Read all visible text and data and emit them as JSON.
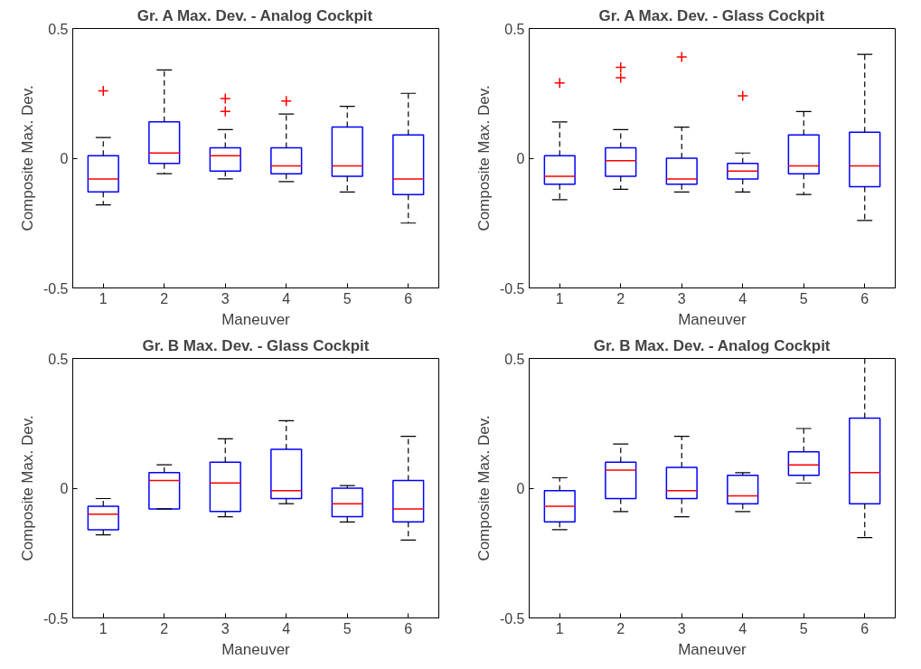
{
  "chart_data": [
    {
      "type": "box",
      "title": "Gr. A Max. Dev. - Analog Cockpit",
      "xlabel": "Maneuver",
      "ylabel": "Composite Max. Dev.",
      "categories": [
        "1",
        "2",
        "3",
        "4",
        "5",
        "6"
      ],
      "ylim": [
        -0.5,
        0.5
      ],
      "yticks": [
        -0.5,
        0,
        0.5
      ],
      "grid": false,
      "series": [
        {
          "color": "#0000ff",
          "boxes": [
            {
              "low": -0.18,
              "q1": -0.13,
              "median": -0.08,
              "q3": 0.01,
              "high": 0.08,
              "outliers": [
                0.26
              ]
            },
            {
              "low": -0.06,
              "q1": -0.02,
              "median": 0.02,
              "q3": 0.14,
              "high": 0.34
            },
            {
              "low": -0.08,
              "q1": -0.05,
              "median": 0.01,
              "q3": 0.04,
              "high": 0.11,
              "outliers": [
                0.18,
                0.23
              ]
            },
            {
              "low": -0.09,
              "q1": -0.06,
              "median": -0.03,
              "q3": 0.04,
              "high": 0.17,
              "outliers": [
                0.22
              ]
            },
            {
              "low": -0.13,
              "q1": -0.07,
              "median": -0.03,
              "q3": 0.12,
              "high": 0.2
            },
            {
              "low": -0.25,
              "q1": -0.14,
              "median": -0.08,
              "q3": 0.09,
              "high": 0.25
            }
          ]
        }
      ]
    },
    {
      "type": "box",
      "title": "Gr. A Max. Dev. - Glass Cockpit",
      "xlabel": "Maneuver",
      "ylabel": "Composite Max. Dev.",
      "categories": [
        "1",
        "2",
        "3",
        "4",
        "5",
        "6"
      ],
      "ylim": [
        -0.5,
        0.5
      ],
      "yticks": [
        -0.5,
        0,
        0.5
      ],
      "grid": false,
      "series": [
        {
          "color": "#0000ff",
          "boxes": [
            {
              "low": -0.16,
              "q1": -0.1,
              "median": -0.07,
              "q3": 0.01,
              "high": 0.14,
              "outliers": [
                0.29
              ]
            },
            {
              "low": -0.12,
              "q1": -0.07,
              "median": -0.01,
              "q3": 0.04,
              "high": 0.11,
              "outliers": [
                0.31,
                0.35
              ]
            },
            {
              "low": -0.13,
              "q1": -0.1,
              "median": -0.08,
              "q3": 0.0,
              "high": 0.12,
              "outliers": [
                0.39
              ]
            },
            {
              "low": -0.13,
              "q1": -0.08,
              "median": -0.05,
              "q3": -0.02,
              "high": 0.02,
              "outliers": [
                0.24
              ]
            },
            {
              "low": -0.14,
              "q1": -0.06,
              "median": -0.03,
              "q3": 0.09,
              "high": 0.18
            },
            {
              "low": -0.24,
              "q1": -0.11,
              "median": -0.03,
              "q3": 0.1,
              "high": 0.4
            }
          ]
        }
      ]
    },
    {
      "type": "box",
      "title": "Gr. B Max. Dev. - Glass Cockpit",
      "xlabel": "Maneuver",
      "ylabel": "Composite Max. Dev.",
      "categories": [
        "1",
        "2",
        "3",
        "4",
        "5",
        "6"
      ],
      "ylim": [
        -0.5,
        0.5
      ],
      "yticks": [
        -0.5,
        0,
        0.5
      ],
      "grid": false,
      "series": [
        {
          "color": "#0000ff",
          "boxes": [
            {
              "low": -0.18,
              "q1": -0.16,
              "median": -0.1,
              "q3": -0.07,
              "high": -0.04
            },
            {
              "low": -0.08,
              "q1": -0.08,
              "median": 0.03,
              "q3": 0.06,
              "high": 0.09
            },
            {
              "low": -0.11,
              "q1": -0.09,
              "median": 0.02,
              "q3": 0.1,
              "high": 0.19
            },
            {
              "low": -0.06,
              "q1": -0.04,
              "median": -0.01,
              "q3": 0.15,
              "high": 0.26
            },
            {
              "low": -0.13,
              "q1": -0.11,
              "median": -0.06,
              "q3": 0.0,
              "high": 0.01
            },
            {
              "low": -0.2,
              "q1": -0.13,
              "median": -0.08,
              "q3": 0.03,
              "high": 0.2
            }
          ]
        }
      ]
    },
    {
      "type": "box",
      "title": "Gr. B Max. Dev. - Analog Cockpit",
      "xlabel": "Maneuver",
      "ylabel": "Composite Max. Dev.",
      "categories": [
        "1",
        "2",
        "3",
        "4",
        "5",
        "6"
      ],
      "ylim": [
        -0.5,
        0.5
      ],
      "yticks": [
        -0.5,
        0,
        0.5
      ],
      "grid": false,
      "series": [
        {
          "color": "#0000ff",
          "boxes": [
            {
              "low": -0.16,
              "q1": -0.13,
              "median": -0.07,
              "q3": -0.01,
              "high": 0.04
            },
            {
              "low": -0.09,
              "q1": -0.04,
              "median": 0.07,
              "q3": 0.1,
              "high": 0.17
            },
            {
              "low": -0.11,
              "q1": -0.04,
              "median": -0.01,
              "q3": 0.08,
              "high": 0.2
            },
            {
              "low": -0.09,
              "q1": -0.06,
              "median": -0.03,
              "q3": 0.05,
              "high": 0.06
            },
            {
              "low": 0.02,
              "q1": 0.05,
              "median": 0.09,
              "q3": 0.14,
              "high": 0.23
            },
            {
              "low": -0.19,
              "q1": -0.06,
              "median": 0.06,
              "q3": 0.27,
              "high": 0.5
            }
          ]
        }
      ]
    }
  ]
}
